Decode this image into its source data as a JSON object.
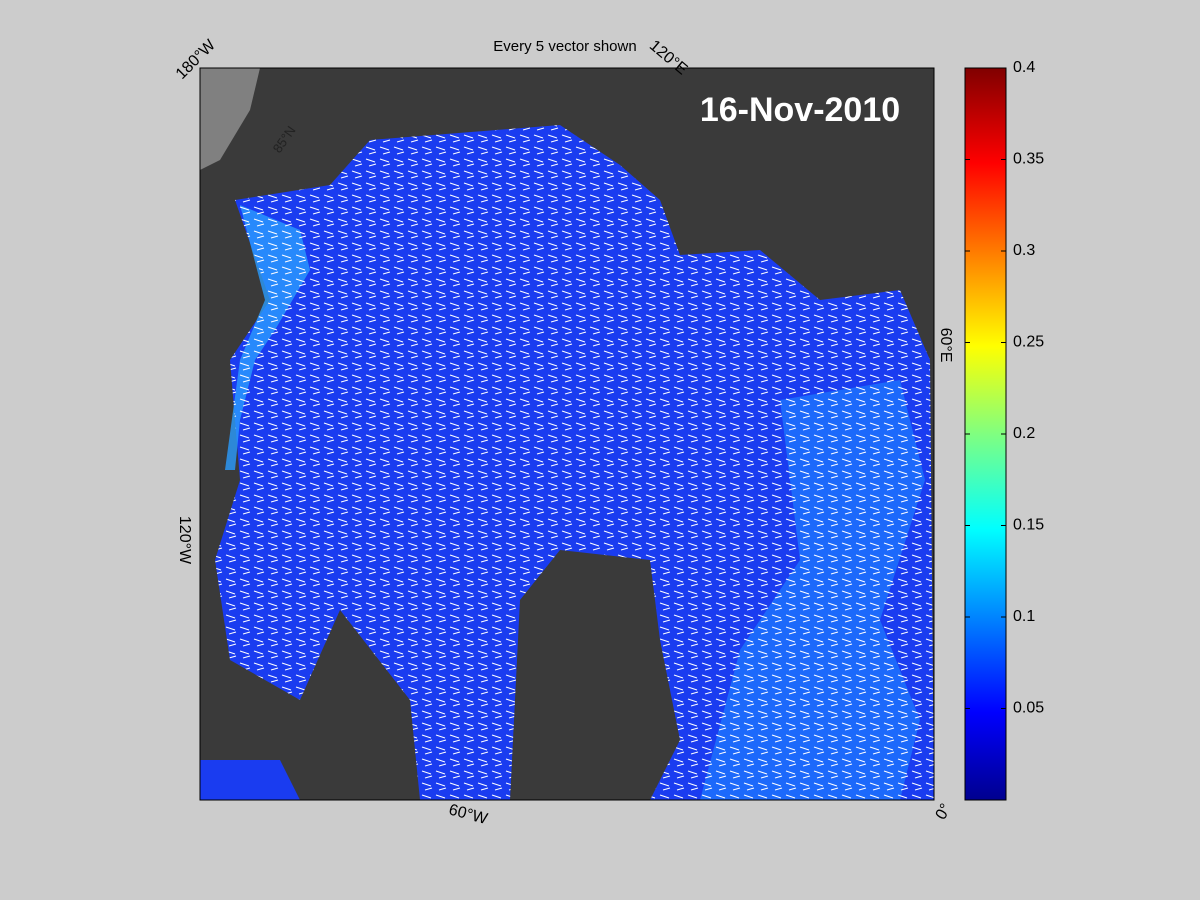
{
  "title": "Every 5 vector shown",
  "date": "16-Nov-2010",
  "map_labels": [
    "180°W",
    "120°E",
    "60°E",
    "0°",
    "60°W",
    "120°W",
    "85°N"
  ],
  "colorbar": {
    "lim": [
      0,
      0.4
    ],
    "ticks": [
      0.05,
      0.1,
      0.15,
      0.2,
      0.25,
      0.3,
      0.35,
      0.4
    ]
  }
}
